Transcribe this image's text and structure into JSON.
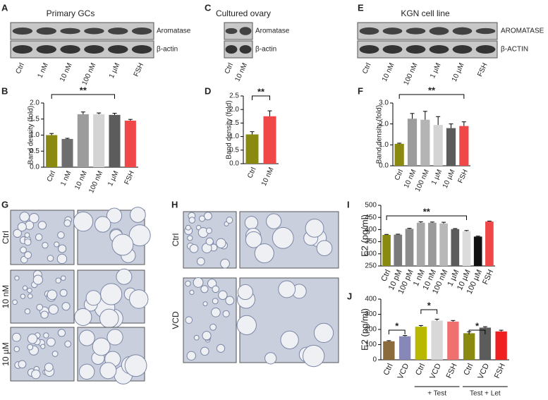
{
  "panels": {
    "A": {
      "letter": "A",
      "title": "Primary GCs",
      "bands": [
        "Aromatase",
        "β-actin"
      ],
      "lanes": [
        "Ctrl",
        "1 nM",
        "10 nM",
        "100 nM",
        "1 µM",
        "FSH"
      ]
    },
    "C": {
      "letter": "C",
      "title": "Cultured ovary",
      "bands": [
        "Aromatase",
        "β-actin"
      ],
      "lanes": [
        "Ctrl",
        "10 nM"
      ]
    },
    "E": {
      "letter": "E",
      "title": "KGN cell line",
      "bands": [
        "AROMATASE",
        "β-ACTIN"
      ],
      "lanes": [
        "Ctrl",
        "10 nM",
        "100 nM",
        "1 µM",
        "10 µM",
        "FSH"
      ]
    },
    "G": {
      "letter": "G",
      "rows": [
        "Ctrl",
        "10 nM",
        "10 µM"
      ]
    },
    "H": {
      "letter": "H",
      "rows": [
        "Ctrl",
        "VCD"
      ]
    }
  },
  "chart_data": [
    {
      "type": "bar",
      "letter": "B",
      "ylabel": "Band density (fold)",
      "categories": [
        "Ctrl",
        "1 nM",
        "10 nM",
        "100 nM",
        "1 µM",
        "FSH"
      ],
      "values": [
        1.0,
        0.88,
        1.65,
        1.65,
        1.63,
        1.45
      ],
      "errors": [
        0.05,
        0.02,
        0.07,
        0.04,
        0.05,
        0.04
      ],
      "colors": [
        "#8a8a10",
        "#6e6e6e",
        "#9c9c9c",
        "#d4d4d4",
        "#5c5c5c",
        "#f04848"
      ],
      "ylim": [
        0,
        2.0
      ],
      "yticks": [
        {
          "value": 0,
          "label": "0.0"
        },
        {
          "value": 0.5,
          "label": "0.5"
        },
        {
          "value": 1,
          "label": "1.0"
        },
        {
          "value": 1.5,
          "label": "1.5"
        },
        {
          "value": 2,
          "label": "2.0"
        }
      ],
      "annotations": [
        "**"
      ]
    },
    {
      "type": "bar",
      "letter": "D",
      "ylabel": "Band density (fold)",
      "categories": [
        "Ctrl",
        "10 nM"
      ],
      "values": [
        1.08,
        1.75
      ],
      "errors": [
        0.1,
        0.2
      ],
      "colors": [
        "#8a8a10",
        "#f04848"
      ],
      "ylim": [
        0,
        2.5
      ],
      "yticks": [
        {
          "value": 0,
          "label": "0.0"
        },
        {
          "value": 0.5,
          "label": "0.5"
        },
        {
          "value": 1,
          "label": "1.0"
        },
        {
          "value": 1.5,
          "label": "1.5"
        },
        {
          "value": 2,
          "label": "2.0"
        },
        {
          "value": 2.5,
          "label": "2.5"
        }
      ],
      "annotations": [
        "**"
      ]
    },
    {
      "type": "bar",
      "letter": "F",
      "ylabel": "Band density (fold)",
      "categories": [
        "Ctrl",
        "10 nM",
        "100 nM",
        "1 µM",
        "10 µM",
        "FSH"
      ],
      "values": [
        1.05,
        2.25,
        2.2,
        1.95,
        1.8,
        1.9
      ],
      "errors": [
        0.03,
        0.25,
        0.4,
        0.4,
        0.2,
        0.2
      ],
      "colors": [
        "#8a8a10",
        "#9c9c9c",
        "#b4b4b4",
        "#d4d4d4",
        "#5c5c5c",
        "#f04848"
      ],
      "ylim": [
        0,
        3.0
      ],
      "yticks": [
        {
          "value": 0,
          "label": "0.0"
        },
        {
          "value": 1,
          "label": "1.0"
        },
        {
          "value": 2,
          "label": "2.0"
        },
        {
          "value": 3,
          "label": "3.0"
        }
      ],
      "annotations": [
        "**"
      ]
    },
    {
      "type": "bar",
      "letter": "I",
      "ylabel": "E2 (pg/ml)",
      "categories": [
        "Ctrl",
        "10 pM",
        "100 pM",
        "1 nM",
        "10 nM",
        "100 nM",
        "1 µM",
        "10 µM",
        "100 µM",
        "FSH"
      ],
      "values": [
        378,
        379,
        403,
        428,
        428,
        425,
        402,
        393,
        371,
        433
      ],
      "errors": [
        2,
        2,
        2,
        4,
        3,
        5,
        2,
        3,
        2,
        2
      ],
      "colors": [
        "#8a8a10",
        "#7a7a7a",
        "#8c8c8c",
        "#a8a8a8",
        "#9a9a9a",
        "#b8b8b8",
        "#5c5c5c",
        "#dcdcdc",
        "#111111",
        "#f04848"
      ],
      "ylim": [
        250,
        500
      ],
      "yticks": [
        250,
        300,
        350,
        400,
        450,
        500
      ],
      "annotations": [
        "**"
      ]
    },
    {
      "type": "bar",
      "letter": "J",
      "ylabel": "E2 (pg/ml)",
      "categories": [
        "Ctrl",
        "VCD",
        "Ctrl",
        "VCD",
        "FSH",
        "Ctrl",
        "VCD",
        "FSH"
      ],
      "values": [
        122,
        155,
        218,
        258,
        252,
        175,
        212,
        187
      ],
      "errors": [
        4,
        5,
        8,
        10,
        7,
        10,
        6,
        8
      ],
      "colors": [
        "#8b6b3c",
        "#8888b8",
        "#b8b800",
        "#d8d8d8",
        "#f07070",
        "#8a8a10",
        "#5c5c5c",
        "#f02020"
      ],
      "ylim": [
        0,
        400
      ],
      "yticks": [
        0,
        100,
        200,
        300,
        400
      ],
      "annotations": [
        "*",
        "*",
        "*"
      ],
      "groups": [
        "+ Test",
        "Test + Let"
      ]
    }
  ]
}
